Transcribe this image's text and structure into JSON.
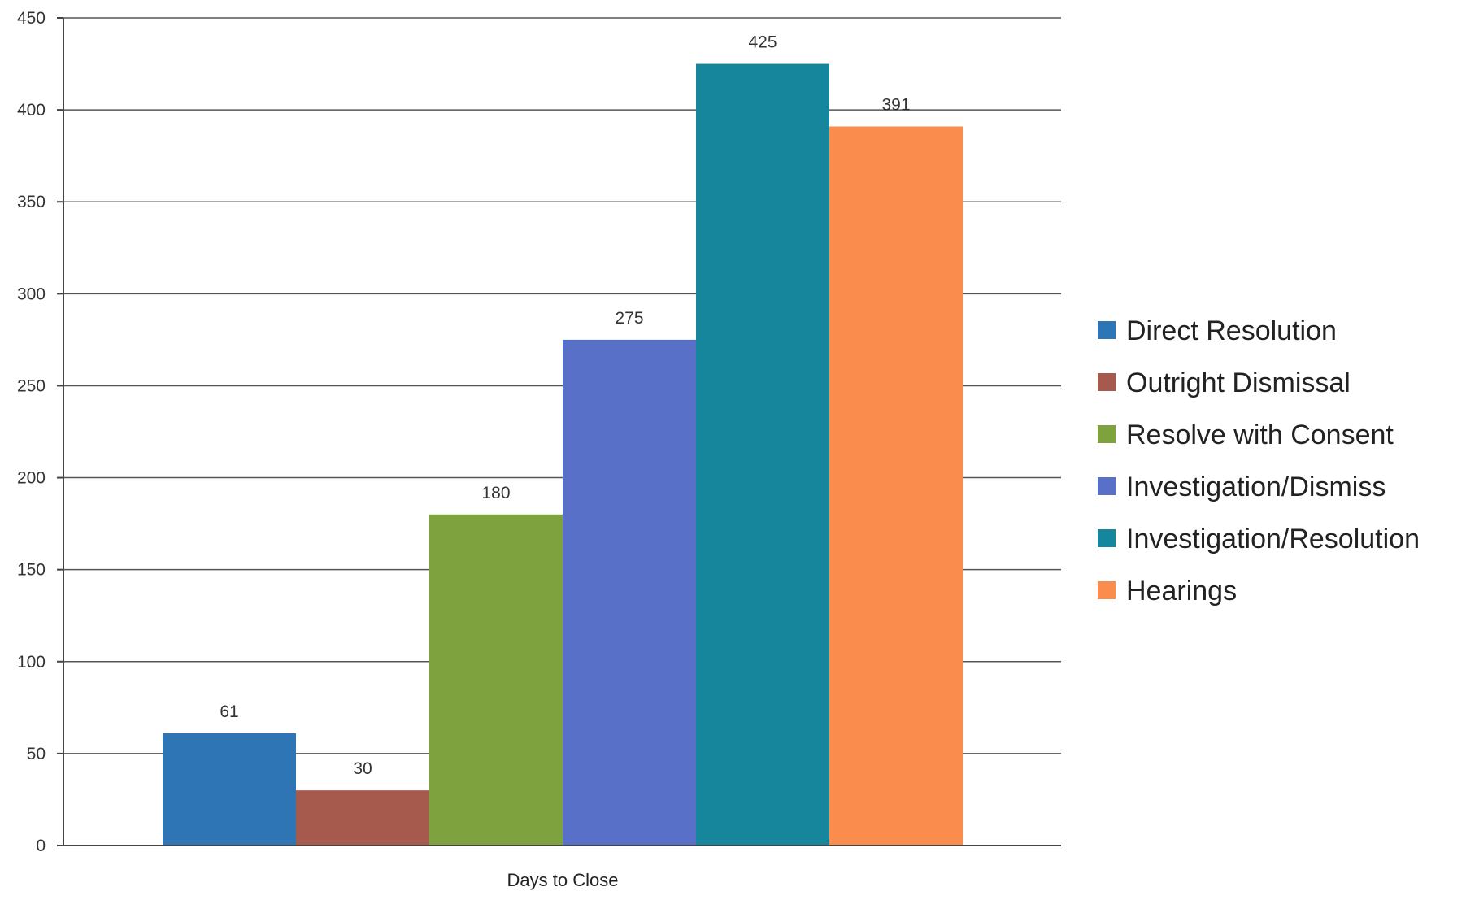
{
  "chart_data": {
    "type": "bar",
    "title": "",
    "xlabel": "Days to Close",
    "ylabel": "",
    "categories": [
      "Days to Close"
    ],
    "series": [
      {
        "name": "Direct Resolution",
        "values": [
          61
        ],
        "color": "#2E75B6"
      },
      {
        "name": "Outright Dismissal",
        "values": [
          30
        ],
        "color": "#A65A4E"
      },
      {
        "name": "Resolve with Consent",
        "values": [
          180
        ],
        "color": "#7DA23E"
      },
      {
        "name": "Investigation/Dismiss",
        "values": [
          275
        ],
        "color": "#5870C8"
      },
      {
        "name": "Investigation/Resolution",
        "values": [
          425
        ],
        "color": "#16869C"
      },
      {
        "name": "Hearings",
        "values": [
          391
        ],
        "color": "#FA8C4E"
      }
    ],
    "ylim": [
      0,
      450
    ],
    "yticks": [
      0,
      50,
      100,
      150,
      200,
      250,
      300,
      350,
      400,
      450
    ],
    "grid": true,
    "legend": "right"
  }
}
